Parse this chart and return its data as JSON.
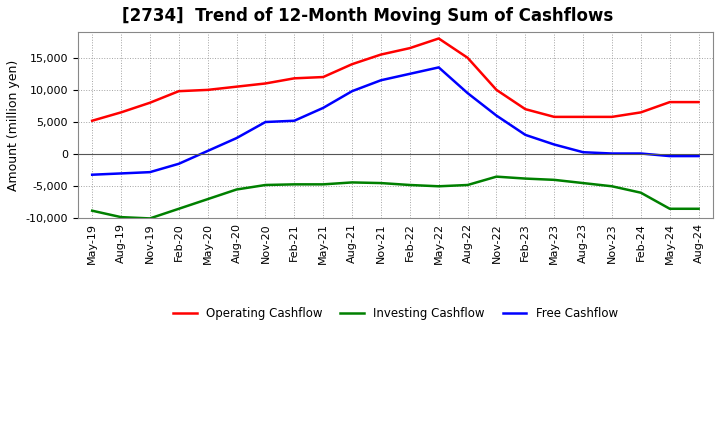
{
  "title": "[2734]  Trend of 12-Month Moving Sum of Cashflows",
  "ylabel": "Amount (million yen)",
  "ylim": [
    -10000,
    19000
  ],
  "yticks": [
    -10000,
    -5000,
    0,
    5000,
    10000,
    15000
  ],
  "background_color": "#ffffff",
  "grid_color": "#aaaaaa",
  "labels": [
    "May-19",
    "Aug-19",
    "Nov-19",
    "Feb-20",
    "May-20",
    "Aug-20",
    "Nov-20",
    "Feb-21",
    "May-21",
    "Aug-21",
    "Nov-21",
    "Feb-22",
    "May-22",
    "Aug-22",
    "Nov-22",
    "Feb-23",
    "May-23",
    "Aug-23",
    "Nov-23",
    "Feb-24",
    "May-24",
    "Aug-24"
  ],
  "operating": [
    5200,
    6500,
    8000,
    9800,
    10000,
    10500,
    11000,
    11800,
    12000,
    14000,
    15500,
    16500,
    18000,
    15000,
    10000,
    7000,
    5800,
    5800,
    5800,
    6500,
    8100,
    8100
  ],
  "investing": [
    -8800,
    -9800,
    -10000,
    -8500,
    -7000,
    -5500,
    -4800,
    -4700,
    -4700,
    -4400,
    -4500,
    -4800,
    -5000,
    -4800,
    -3500,
    -3800,
    -4000,
    -4500,
    -5000,
    -6000,
    -8500,
    -8500
  ],
  "free": [
    -3200,
    -3000,
    -2800,
    -1500,
    500,
    2500,
    5000,
    5200,
    7200,
    9800,
    11500,
    12500,
    13500,
    9500,
    6000,
    3000,
    1500,
    300,
    100,
    100,
    -300,
    -300
  ],
  "operating_color": "#ff0000",
  "investing_color": "#008000",
  "free_color": "#0000ff",
  "legend_labels": [
    "Operating Cashflow",
    "Investing Cashflow",
    "Free Cashflow"
  ],
  "title_fontsize": 12,
  "axis_fontsize": 8,
  "ylabel_fontsize": 9,
  "linewidth": 1.8
}
